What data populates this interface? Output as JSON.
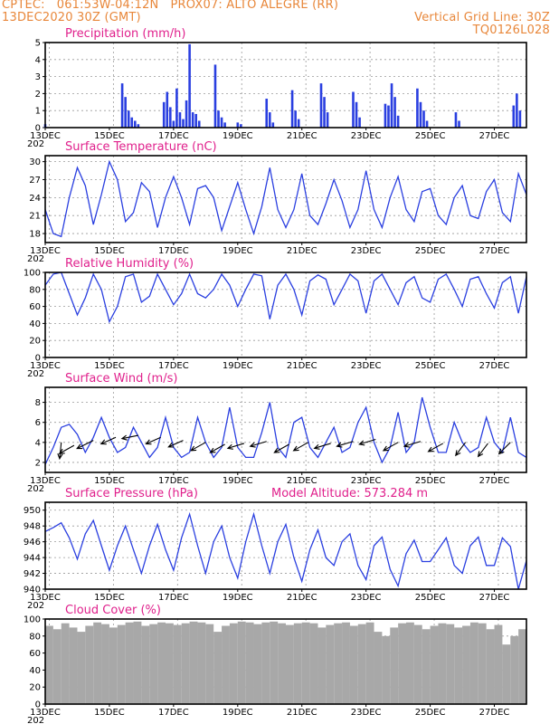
{
  "header": {
    "line1_left": "CPTEC:   061:53W-04:12N   PROX07: ALTO ALEGRE (RR)",
    "line2_left": "13DEC2020 30Z (GMT)",
    "line2_right": "Vertical Grid Line: 30Z",
    "line3_right": "TQ0126L028"
  },
  "colors": {
    "header": "#e8873a",
    "title": "#e0208c",
    "series": "#2a3fe0",
    "cloud": "#a8a8a8"
  },
  "x_axis": {
    "ticks": [
      13,
      15,
      17,
      19,
      21,
      23,
      25,
      27
    ],
    "labels": [
      "13DEC",
      "15DEC",
      "17DEC",
      "19DEC",
      "21DEC",
      "23DEC",
      "25DEC",
      "27DEC"
    ],
    "start_day": 13,
    "end_day": 28,
    "year_stub": "202"
  },
  "chart_data": [
    {
      "type": "bar",
      "title": "Precipitation (mm/h)",
      "ylim": [
        0,
        5
      ],
      "yticks": [
        0,
        1,
        2,
        3,
        4,
        5
      ],
      "x": [
        13.0,
        15.4,
        15.5,
        15.6,
        15.7,
        15.8,
        15.9,
        16.7,
        16.8,
        16.9,
        17.0,
        17.1,
        17.2,
        17.3,
        17.4,
        17.5,
        17.6,
        17.7,
        17.8,
        18.3,
        18.4,
        18.5,
        18.6,
        19.0,
        19.1,
        19.9,
        20.0,
        20.1,
        20.7,
        20.8,
        20.9,
        21.6,
        21.7,
        21.8,
        22.6,
        22.7,
        22.8,
        23.6,
        23.7,
        23.8,
        23.9,
        24.0,
        24.6,
        24.7,
        24.8,
        24.9,
        25.8,
        25.9,
        27.6,
        27.7,
        27.8
      ],
      "values": [
        0.2,
        2.6,
        1.8,
        1.0,
        0.6,
        0.4,
        0.2,
        1.5,
        2.1,
        1.2,
        0.4,
        2.3,
        0.9,
        0.5,
        1.6,
        4.9,
        0.9,
        0.8,
        0.4,
        3.7,
        1.0,
        0.6,
        0.3,
        0.3,
        0.2,
        1.7,
        0.9,
        0.3,
        2.2,
        1.0,
        0.5,
        2.6,
        1.8,
        0.9,
        2.1,
        1.5,
        0.6,
        1.4,
        1.3,
        2.6,
        1.8,
        0.7,
        2.3,
        1.5,
        1.0,
        0.4,
        0.9,
        0.4,
        1.3,
        2.0,
        1.0
      ]
    },
    {
      "type": "line",
      "title": "Surface Temperature (nC)",
      "ylim": [
        16.5,
        31
      ],
      "yticks": [
        18,
        21,
        24,
        27,
        30
      ],
      "x": [
        13.0,
        13.25,
        13.5,
        13.75,
        14.0,
        14.25,
        14.5,
        14.75,
        15.0,
        15.25,
        15.5,
        15.75,
        16.0,
        16.25,
        16.5,
        16.75,
        17.0,
        17.25,
        17.5,
        17.75,
        18.0,
        18.25,
        18.5,
        18.75,
        19.0,
        19.25,
        19.5,
        19.75,
        20.0,
        20.25,
        20.5,
        20.75,
        21.0,
        21.25,
        21.5,
        21.75,
        22.0,
        22.25,
        22.5,
        22.75,
        23.0,
        23.25,
        23.5,
        23.75,
        24.0,
        24.25,
        24.5,
        24.75,
        25.0,
        25.25,
        25.5,
        25.75,
        26.0,
        26.25,
        26.5,
        26.75,
        27.0,
        27.25,
        27.5,
        27.75,
        28.0
      ],
      "values": [
        22.0,
        18.0,
        17.5,
        24.0,
        29.0,
        26.0,
        19.5,
        24.5,
        30.0,
        27.0,
        20.0,
        21.5,
        26.5,
        25.0,
        19.0,
        24.0,
        27.5,
        24.0,
        19.5,
        25.5,
        26.0,
        24.0,
        18.5,
        22.5,
        26.5,
        22.0,
        18.0,
        22.5,
        29.0,
        22.0,
        19.0,
        22.0,
        28.0,
        21.0,
        19.5,
        23.0,
        27.0,
        23.5,
        19.0,
        22.0,
        28.5,
        22.0,
        19.0,
        24.0,
        27.5,
        22.0,
        20.0,
        25.0,
        25.5,
        21.0,
        19.5,
        24.0,
        26.0,
        21.0,
        20.5,
        25.0,
        27.0,
        21.5,
        20.0,
        28.0,
        24.5
      ]
    },
    {
      "type": "line",
      "title": "Relative Humidity (%)",
      "ylim": [
        0,
        100
      ],
      "yticks": [
        0,
        20,
        40,
        60,
        80,
        100
      ],
      "x": [
        13.0,
        13.25,
        13.5,
        13.75,
        14.0,
        14.25,
        14.5,
        14.75,
        15.0,
        15.25,
        15.5,
        15.75,
        16.0,
        16.25,
        16.5,
        16.75,
        17.0,
        17.25,
        17.5,
        17.75,
        18.0,
        18.25,
        18.5,
        18.75,
        19.0,
        19.25,
        19.5,
        19.75,
        20.0,
        20.25,
        20.5,
        20.75,
        21.0,
        21.25,
        21.5,
        21.75,
        22.0,
        22.25,
        22.5,
        22.75,
        23.0,
        23.25,
        23.5,
        23.75,
        24.0,
        24.25,
        24.5,
        24.75,
        25.0,
        25.25,
        25.5,
        25.75,
        26.0,
        26.25,
        26.5,
        26.75,
        27.0,
        27.25,
        27.5,
        27.75,
        28.0
      ],
      "values": [
        85,
        98,
        100,
        75,
        50,
        70,
        98,
        80,
        42,
        60,
        95,
        98,
        65,
        72,
        98,
        80,
        62,
        75,
        98,
        75,
        70,
        80,
        98,
        85,
        60,
        80,
        98,
        96,
        45,
        85,
        98,
        80,
        50,
        90,
        97,
        92,
        62,
        80,
        98,
        90,
        52,
        90,
        98,
        80,
        62,
        88,
        95,
        70,
        65,
        92,
        98,
        80,
        60,
        92,
        95,
        75,
        58,
        88,
        95,
        52,
        95
      ]
    },
    {
      "type": "line",
      "title": "Surface Wind (m/s)",
      "ylim": [
        1,
        9.5
      ],
      "yticks": [
        2,
        4,
        6,
        8
      ],
      "x": [
        13.0,
        13.25,
        13.5,
        13.75,
        14.0,
        14.25,
        14.5,
        14.75,
        15.0,
        15.25,
        15.5,
        15.75,
        16.0,
        16.25,
        16.5,
        16.75,
        17.0,
        17.25,
        17.5,
        17.75,
        18.0,
        18.25,
        18.5,
        18.75,
        19.0,
        19.25,
        19.5,
        19.75,
        20.0,
        20.25,
        20.5,
        20.75,
        21.0,
        21.25,
        21.5,
        21.75,
        22.0,
        22.25,
        22.5,
        22.75,
        23.0,
        23.25,
        23.5,
        23.75,
        24.0,
        24.25,
        24.5,
        24.75,
        25.0,
        25.25,
        25.5,
        25.75,
        26.0,
        26.25,
        26.5,
        26.75,
        27.0,
        27.25,
        27.5,
        27.75,
        28.0
      ],
      "values": [
        1.8,
        3.5,
        5.5,
        5.8,
        4.8,
        3.0,
        4.5,
        6.5,
        4.5,
        3.0,
        3.5,
        5.5,
        4.0,
        2.5,
        3.5,
        6.5,
        3.5,
        2.5,
        3.0,
        6.5,
        4.0,
        2.5,
        3.5,
        7.5,
        3.5,
        2.5,
        2.5,
        5.0,
        8.0,
        3.5,
        2.5,
        6.0,
        6.5,
        3.5,
        2.5,
        4.0,
        5.5,
        3.0,
        3.5,
        6.0,
        7.5,
        4.0,
        2.0,
        3.5,
        7.0,
        3.0,
        4.0,
        8.5,
        5.5,
        3.0,
        3.0,
        6.0,
        4.0,
        3.0,
        3.5,
        6.5,
        4.0,
        3.0,
        6.5,
        3.0,
        2.5
      ],
      "arrows": {
        "x": [
          13.5,
          13.9,
          14.5,
          15.2,
          15.9,
          16.6,
          17.3,
          18.0,
          18.6,
          19.2,
          19.9,
          20.6,
          21.2,
          21.9,
          22.6,
          23.3,
          24.0,
          24.7,
          25.4,
          26.1,
          26.8,
          27.5
        ],
        "y": [
          4.0,
          3.7,
          4.2,
          4.5,
          4.7,
          4.5,
          4.2,
          4.0,
          3.8,
          3.9,
          4.1,
          3.8,
          4.0,
          3.9,
          4.1,
          4.3,
          4.0,
          4.1,
          3.9,
          4.0,
          3.9,
          4.0
        ],
        "u": [
          -0.1,
          -0.9,
          -1.0,
          -0.9,
          -1.0,
          -0.9,
          -0.9,
          -0.9,
          -0.9,
          -1.0,
          -1.0,
          -0.9,
          -0.9,
          -1.0,
          -1.0,
          -1.0,
          -0.9,
          -1.0,
          -0.9,
          -0.6,
          -0.6,
          -0.7
        ],
        "v": [
          -1.0,
          -0.5,
          -0.5,
          -0.4,
          -0.2,
          -0.4,
          -0.4,
          -0.5,
          -0.5,
          -0.3,
          -0.3,
          -0.5,
          -0.5,
          -0.3,
          -0.3,
          -0.3,
          -0.5,
          -0.3,
          -0.5,
          -0.8,
          -0.8,
          -0.7
        ]
      }
    },
    {
      "type": "line",
      "title": "Surface Pressure (hPa)",
      "annotation": "Model Altitude: 573.284 m",
      "ylim": [
        940,
        951
      ],
      "yticks": [
        940,
        942,
        944,
        946,
        948,
        950
      ],
      "x": [
        13.0,
        13.25,
        13.5,
        13.75,
        14.0,
        14.25,
        14.5,
        14.75,
        15.0,
        15.25,
        15.5,
        15.75,
        16.0,
        16.25,
        16.5,
        16.75,
        17.0,
        17.25,
        17.5,
        17.75,
        18.0,
        18.25,
        18.5,
        18.75,
        19.0,
        19.25,
        19.5,
        19.75,
        20.0,
        20.25,
        20.5,
        20.75,
        21.0,
        21.25,
        21.5,
        21.75,
        22.0,
        22.25,
        22.5,
        22.75,
        23.0,
        23.25,
        23.5,
        23.75,
        24.0,
        24.25,
        24.5,
        24.75,
        25.0,
        25.25,
        25.5,
        25.75,
        26.0,
        26.25,
        26.5,
        26.75,
        27.0,
        27.25,
        27.5,
        27.75,
        28.0
      ],
      "values": [
        947.3,
        947.8,
        948.4,
        946.5,
        943.8,
        947.0,
        948.7,
        945.5,
        942.4,
        945.5,
        948.0,
        945.0,
        942.0,
        945.5,
        948.2,
        945.0,
        942.4,
        946.5,
        949.5,
        945.5,
        942.0,
        946.0,
        948.0,
        944.0,
        941.4,
        946.0,
        949.5,
        945.5,
        942.0,
        946.0,
        948.2,
        944.0,
        941.0,
        945.0,
        947.5,
        944.0,
        943.0,
        946.0,
        947.0,
        943.0,
        941.2,
        945.5,
        946.6,
        942.5,
        940.4,
        944.5,
        946.2,
        943.5,
        943.5,
        945.0,
        946.5,
        943.0,
        942.0,
        945.5,
        946.6,
        943.0,
        943.0,
        946.5,
        945.4,
        940.0,
        943.6
      ]
    },
    {
      "type": "area",
      "title": "Cloud Cover (%)",
      "ylim": [
        0,
        100
      ],
      "yticks": [
        0,
        20,
        40,
        60,
        80,
        100
      ],
      "x": [
        13.0,
        13.25,
        13.5,
        13.75,
        14.0,
        14.25,
        14.5,
        14.75,
        15.0,
        15.25,
        15.5,
        15.75,
        16.0,
        16.25,
        16.5,
        16.75,
        17.0,
        17.25,
        17.5,
        17.75,
        18.0,
        18.25,
        18.5,
        18.75,
        19.0,
        19.25,
        19.5,
        19.75,
        20.0,
        20.25,
        20.5,
        20.75,
        21.0,
        21.25,
        21.5,
        21.75,
        22.0,
        22.25,
        22.5,
        22.75,
        23.0,
        23.25,
        23.5,
        23.75,
        24.0,
        24.25,
        24.5,
        24.75,
        25.0,
        25.25,
        25.5,
        25.75,
        26.0,
        26.25,
        26.5,
        26.75,
        27.0,
        27.25,
        27.5,
        27.75,
        28.0
      ],
      "values": [
        92,
        88,
        95,
        90,
        85,
        92,
        96,
        94,
        90,
        93,
        96,
        97,
        92,
        94,
        96,
        95,
        93,
        95,
        97,
        96,
        94,
        85,
        92,
        95,
        97,
        96,
        94,
        96,
        97,
        95,
        93,
        95,
        96,
        95,
        90,
        93,
        95,
        96,
        92,
        94,
        96,
        85,
        80,
        90,
        95,
        96,
        93,
        88,
        92,
        95,
        94,
        90,
        92,
        96,
        95,
        88,
        93,
        70,
        80,
        88,
        94
      ]
    }
  ]
}
